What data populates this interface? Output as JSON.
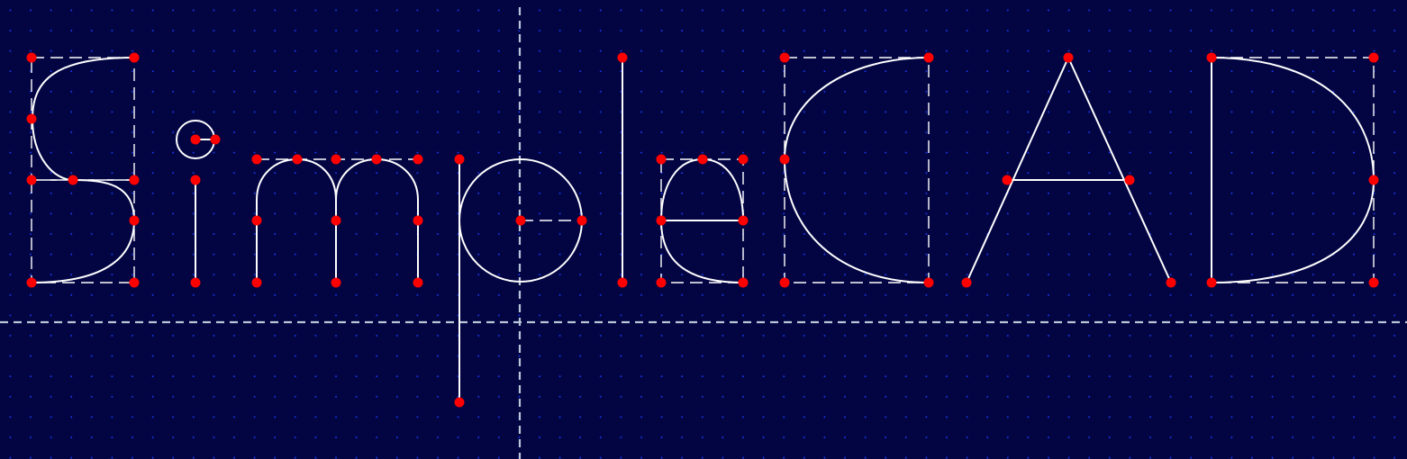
{
  "canvas": {
    "background_color": "#020542",
    "grid_dot_color": "#1a3dff",
    "cursor_line_color": "#b9c6d8",
    "stroke_color": "#ffffff",
    "handle_color": "#ff0000"
  },
  "drawing": {
    "text": "SimpleCAD",
    "glyphs": [
      "S",
      "i",
      "m",
      "p",
      "l",
      "e",
      "C",
      "A",
      "D"
    ]
  }
}
